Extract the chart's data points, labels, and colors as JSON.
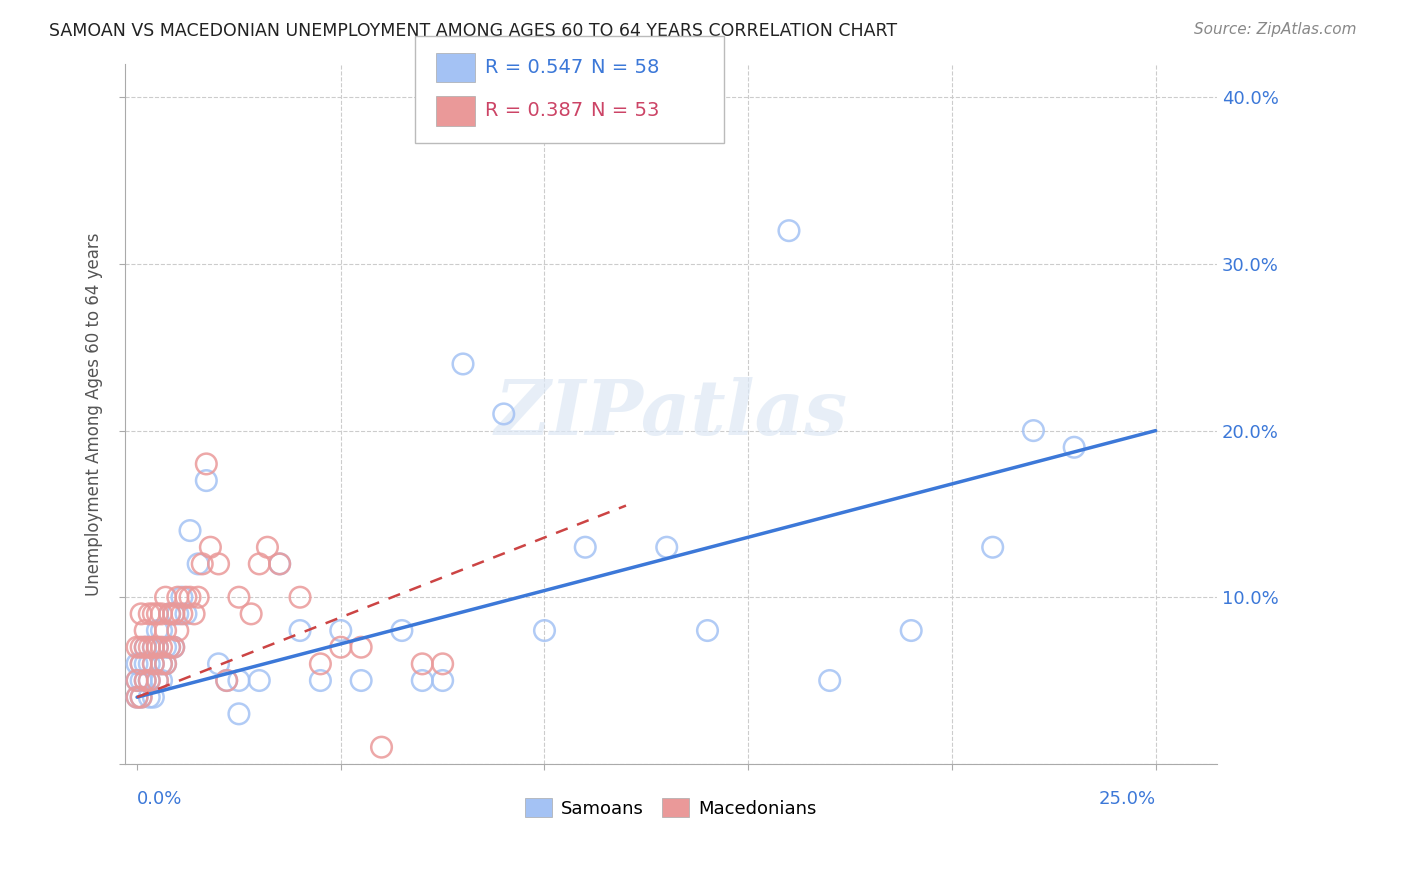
{
  "title": "SAMOAN VS MACEDONIAN UNEMPLOYMENT AMONG AGES 60 TO 64 YEARS CORRELATION CHART",
  "source": "Source: ZipAtlas.com",
  "ylabel": "Unemployment Among Ages 60 to 64 years",
  "ylim": [
    0,
    0.42
  ],
  "xlim": [
    -0.003,
    0.265
  ],
  "samoan_R": 0.547,
  "samoan_N": 58,
  "macedonian_R": 0.387,
  "macedonian_N": 53,
  "samoan_color": "#a4c2f4",
  "macedonian_color": "#ea9999",
  "samoan_line_color": "#3c78d8",
  "macedonian_line_color": "#cc4444",
  "background_color": "#ffffff",
  "grid_color": "#cccccc",
  "samoan_x": [
    0.0,
    0.0,
    0.0,
    0.001,
    0.001,
    0.001,
    0.002,
    0.002,
    0.002,
    0.003,
    0.003,
    0.003,
    0.004,
    0.004,
    0.004,
    0.005,
    0.005,
    0.005,
    0.006,
    0.006,
    0.006,
    0.007,
    0.007,
    0.008,
    0.008,
    0.009,
    0.009,
    0.01,
    0.011,
    0.012,
    0.013,
    0.015,
    0.017,
    0.02,
    0.022,
    0.025,
    0.025,
    0.03,
    0.035,
    0.04,
    0.045,
    0.05,
    0.055,
    0.065,
    0.07,
    0.075,
    0.08,
    0.09,
    0.1,
    0.11,
    0.13,
    0.14,
    0.16,
    0.17,
    0.19,
    0.21,
    0.22,
    0.23
  ],
  "samoan_y": [
    0.04,
    0.05,
    0.06,
    0.04,
    0.05,
    0.06,
    0.05,
    0.06,
    0.07,
    0.04,
    0.05,
    0.06,
    0.04,
    0.06,
    0.07,
    0.05,
    0.07,
    0.08,
    0.05,
    0.06,
    0.08,
    0.06,
    0.07,
    0.07,
    0.09,
    0.07,
    0.09,
    0.09,
    0.1,
    0.09,
    0.14,
    0.12,
    0.17,
    0.06,
    0.05,
    0.03,
    0.05,
    0.05,
    0.12,
    0.08,
    0.05,
    0.08,
    0.05,
    0.08,
    0.05,
    0.05,
    0.24,
    0.21,
    0.08,
    0.13,
    0.13,
    0.08,
    0.32,
    0.05,
    0.08,
    0.13,
    0.2,
    0.19
  ],
  "macedonian_x": [
    0.0,
    0.0,
    0.0,
    0.001,
    0.001,
    0.001,
    0.001,
    0.002,
    0.002,
    0.002,
    0.003,
    0.003,
    0.003,
    0.004,
    0.004,
    0.004,
    0.005,
    0.005,
    0.005,
    0.006,
    0.006,
    0.006,
    0.007,
    0.007,
    0.007,
    0.008,
    0.008,
    0.009,
    0.009,
    0.01,
    0.01,
    0.011,
    0.012,
    0.013,
    0.014,
    0.015,
    0.016,
    0.017,
    0.018,
    0.02,
    0.022,
    0.025,
    0.028,
    0.03,
    0.032,
    0.035,
    0.04,
    0.045,
    0.05,
    0.055,
    0.06,
    0.07,
    0.075
  ],
  "macedonian_y": [
    0.04,
    0.05,
    0.07,
    0.04,
    0.06,
    0.07,
    0.09,
    0.05,
    0.07,
    0.08,
    0.05,
    0.07,
    0.09,
    0.06,
    0.07,
    0.09,
    0.05,
    0.07,
    0.09,
    0.06,
    0.07,
    0.09,
    0.06,
    0.08,
    0.1,
    0.07,
    0.09,
    0.07,
    0.09,
    0.08,
    0.1,
    0.09,
    0.1,
    0.1,
    0.09,
    0.1,
    0.12,
    0.18,
    0.13,
    0.12,
    0.05,
    0.1,
    0.09,
    0.12,
    0.13,
    0.12,
    0.1,
    0.06,
    0.07,
    0.07,
    0.01,
    0.06,
    0.06
  ],
  "samoan_line_x": [
    0.0,
    0.25
  ],
  "samoan_line_y": [
    0.04,
    0.2
  ],
  "macedonian_line_x": [
    0.0,
    0.12
  ],
  "macedonian_line_y": [
    0.04,
    0.155
  ]
}
